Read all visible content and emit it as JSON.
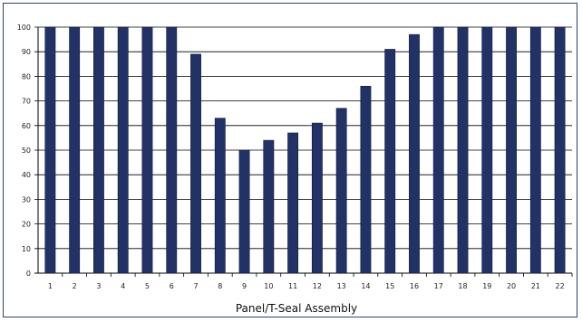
{
  "chart_data": {
    "type": "bar",
    "categories": [
      "1",
      "2",
      "3",
      "4",
      "5",
      "6",
      "7",
      "8",
      "9",
      "10",
      "11",
      "12",
      "13",
      "14",
      "15",
      "16",
      "17",
      "18",
      "19",
      "20",
      "21",
      "22"
    ],
    "values": [
      100,
      100,
      100,
      100,
      100,
      100,
      89,
      63,
      50,
      54,
      57,
      61,
      67,
      76,
      91,
      97,
      100,
      100,
      100,
      100,
      100,
      100
    ],
    "title": "",
    "xlabel": "Panel/T-Seal Assembly",
    "ylabel": "",
    "ylim": [
      0,
      100
    ],
    "yticks": [
      0,
      10,
      20,
      30,
      40,
      50,
      60,
      70,
      80,
      90,
      100
    ],
    "grid": true,
    "bar_color": "#223266",
    "grid_color": "#000000",
    "frame_color": "#2f3f7a"
  }
}
